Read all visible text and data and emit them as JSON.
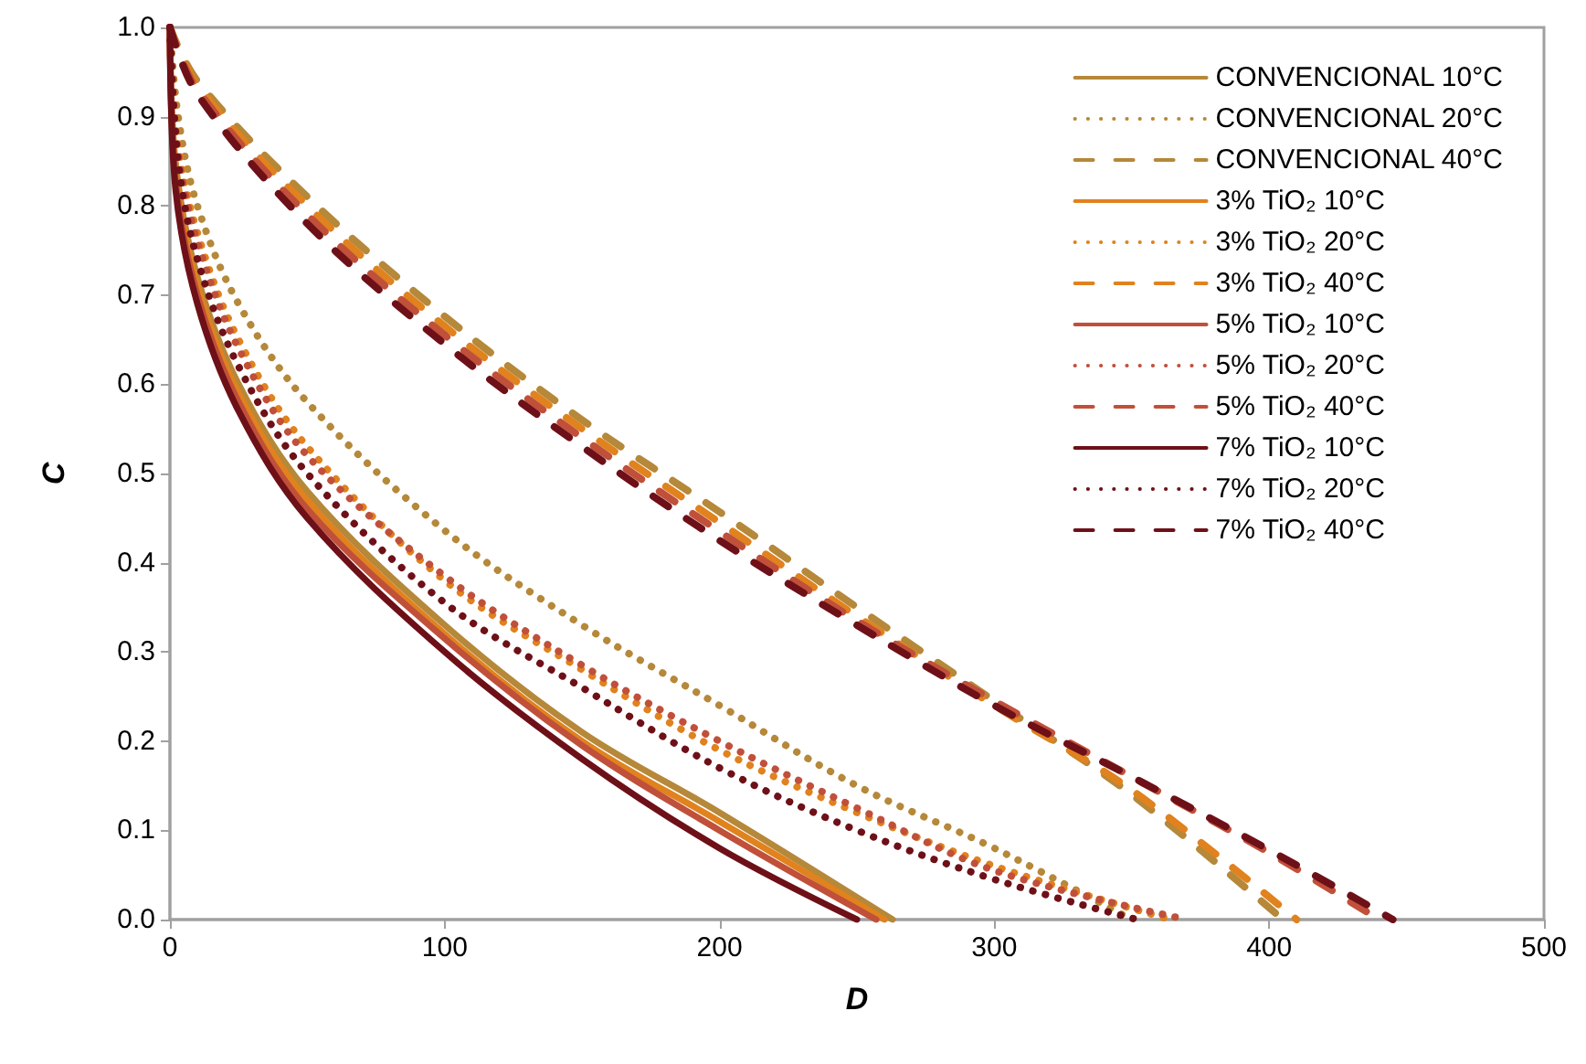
{
  "chart_data": {
    "type": "line",
    "xlabel": "D",
    "ylabel": "C",
    "xlim": [
      0,
      500
    ],
    "xticks": [
      0,
      100,
      200,
      300,
      400,
      500
    ],
    "ylim": [
      0,
      1
    ],
    "yticks": [
      {
        "value": 0,
        "label": "0.0"
      },
      0.1,
      0.2,
      0.3,
      0.4,
      0.5,
      0.6,
      0.7,
      0.8,
      0.9,
      {
        "value": 1,
        "label": "1.0"
      }
    ],
    "grid": false,
    "legend": "top right",
    "marker": "none",
    "series": [
      {
        "name": "CONVENCIONAL 10°C",
        "color": "#b5883a",
        "line_style": "solid",
        "x": [
          0,
          2,
          10,
          25,
          50,
          100,
          150,
          200,
          263
        ],
        "values": [
          1,
          0.85,
          0.72,
          0.6,
          0.48,
          0.33,
          0.21,
          0.12,
          0
        ]
      },
      {
        "name": "CONVENCIONAL 20°C",
        "color": "#b5883a",
        "line_style": "dotted",
        "x": [
          0,
          3,
          10,
          25,
          50,
          100,
          150,
          200,
          250,
          300,
          350
        ],
        "values": [
          1,
          0.9,
          0.8,
          0.69,
          0.58,
          0.436,
          0.33,
          0.24,
          0.15,
          0.08,
          0
        ]
      },
      {
        "name": "CONVENCIONAL 40°C",
        "color": "#b5883a",
        "line_style": "dashed",
        "x": [
          0,
          10,
          50,
          100,
          150,
          200,
          250,
          300,
          350,
          405
        ],
        "values": [
          1,
          0.94,
          0.81,
          0.676,
          0.56,
          0.457,
          0.35,
          0.245,
          0.14,
          0
        ]
      },
      {
        "name": "3% TiO₂ 10°C",
        "color": "#e0821e",
        "line_style": "solid",
        "x": [
          0,
          2,
          10,
          25,
          50,
          100,
          150,
          200,
          260
        ],
        "values": [
          1,
          0.84,
          0.71,
          0.59,
          0.47,
          0.32,
          0.2,
          0.11,
          0
        ]
      },
      {
        "name": "3% TiO₂ 20°C",
        "color": "#e0821e",
        "line_style": "dotted",
        "x": [
          0,
          3,
          10,
          25,
          50,
          100,
          150,
          200,
          250,
          300,
          364
        ],
        "values": [
          1,
          0.87,
          0.77,
          0.65,
          0.53,
          0.38,
          0.28,
          0.19,
          0.12,
          0.06,
          0
        ]
      },
      {
        "name": "3% TiO₂ 40°C",
        "color": "#e0821e",
        "line_style": "dashed",
        "x": [
          0,
          10,
          50,
          100,
          150,
          200,
          250,
          300,
          350,
          410
        ],
        "values": [
          1,
          0.935,
          0.8,
          0.665,
          0.55,
          0.445,
          0.34,
          0.24,
          0.145,
          0
        ]
      },
      {
        "name": "5% TiO₂ 10°C",
        "color": "#c0503a",
        "line_style": "solid",
        "x": [
          0,
          2,
          10,
          25,
          50,
          100,
          150,
          200,
          257
        ],
        "values": [
          1,
          0.83,
          0.7,
          0.58,
          0.46,
          0.315,
          0.195,
          0.1,
          0
        ]
      },
      {
        "name": "5% TiO₂ 20°C",
        "color": "#c0503a",
        "line_style": "dotted",
        "x": [
          0,
          3,
          10,
          25,
          50,
          100,
          150,
          200,
          250,
          300,
          370
        ],
        "values": [
          1,
          0.86,
          0.76,
          0.64,
          0.52,
          0.385,
          0.285,
          0.2,
          0.125,
          0.055,
          0
        ]
      },
      {
        "name": "5% TiO₂ 40°C",
        "color": "#c0503a",
        "line_style": "dashed",
        "x": [
          0,
          10,
          50,
          100,
          150,
          200,
          250,
          300,
          350,
          400,
          440
        ],
        "values": [
          1,
          0.93,
          0.79,
          0.655,
          0.54,
          0.435,
          0.335,
          0.245,
          0.16,
          0.075,
          0
        ]
      },
      {
        "name": "7% TiO₂ 10°C",
        "color": "#6e1018",
        "line_style": "solid",
        "x": [
          0,
          2,
          10,
          25,
          50,
          100,
          150,
          200,
          250
        ],
        "values": [
          1,
          0.82,
          0.69,
          0.57,
          0.45,
          0.3,
          0.18,
          0.08,
          0
        ]
      },
      {
        "name": "7% TiO₂ 20°C",
        "color": "#6e1018",
        "line_style": "dotted",
        "x": [
          0,
          3,
          10,
          25,
          50,
          100,
          150,
          200,
          250,
          300,
          352
        ],
        "values": [
          1,
          0.85,
          0.74,
          0.62,
          0.5,
          0.355,
          0.26,
          0.17,
          0.1,
          0.045,
          0
        ]
      },
      {
        "name": "7% TiO₂ 40°C",
        "color": "#6e1018",
        "line_style": "dashed",
        "x": [
          0,
          10,
          50,
          100,
          150,
          200,
          250,
          300,
          350,
          400,
          445
        ],
        "values": [
          1,
          0.925,
          0.78,
          0.645,
          0.53,
          0.425,
          0.33,
          0.24,
          0.16,
          0.078,
          0
        ]
      }
    ]
  }
}
